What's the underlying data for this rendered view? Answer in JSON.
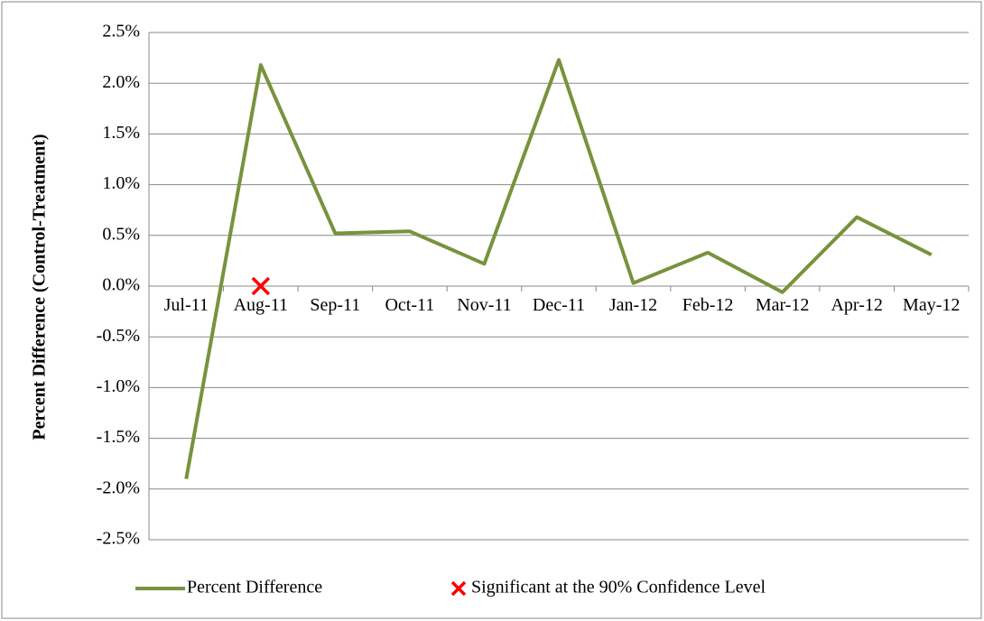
{
  "chart_data": {
    "type": "line",
    "y_label": "Percent Difference (Control-Treatment)",
    "categories": [
      "Jul-11",
      "Aug-11",
      "Sep-11",
      "Oct-11",
      "Nov-11",
      "Dec-11",
      "Jan-12",
      "Feb-12",
      "Mar-12",
      "Apr-12",
      "May-12"
    ],
    "series": [
      {
        "name": "Percent Difference",
        "color": "#77933c",
        "values": [
          -1.9,
          2.18,
          0.52,
          0.54,
          0.22,
          2.23,
          0.03,
          0.33,
          -0.06,
          0.68,
          0.31
        ]
      },
      {
        "name": "Significant at the 90% Confidence Level",
        "color": "#ff0000",
        "marker": "x",
        "values": [
          null,
          0,
          null,
          null,
          null,
          null,
          null,
          null,
          null,
          null,
          null
        ]
      }
    ],
    "ylim": [
      -2.5,
      2.5
    ],
    "yticks": [
      {
        "value": -2.5,
        "label": "-2.5%"
      },
      {
        "value": -2,
        "label": "-2.0%"
      },
      {
        "value": -1.5,
        "label": "-1.5%"
      },
      {
        "value": -1,
        "label": "-1.0%"
      },
      {
        "value": -0.5,
        "label": "-0.5%"
      },
      {
        "value": 0,
        "label": "0.0%"
      },
      {
        "value": 0.5,
        "label": "0.5%"
      },
      {
        "value": 1,
        "label": "1.0%"
      },
      {
        "value": 1.5,
        "label": "1.5%"
      },
      {
        "value": 2,
        "label": "2.0%"
      },
      {
        "value": 2.5,
        "label": "2.5%"
      }
    ],
    "grid": true,
    "legend": "bottom"
  }
}
